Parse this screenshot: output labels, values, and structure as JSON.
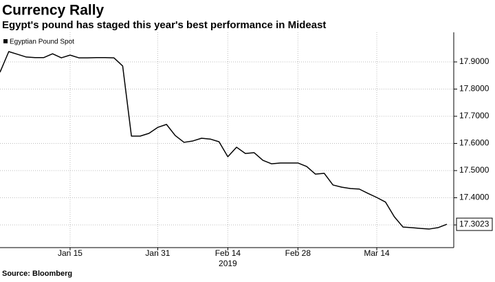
{
  "chart_data": {
    "type": "line",
    "title": "Currency Rally",
    "subtitle": "Egypt's pound has staged this year's best performance in Mideast",
    "source": "Source: Bloomberg",
    "x_axis_label": "2019",
    "categories": [
      null,
      null,
      null,
      null,
      null,
      null,
      null,
      null,
      "Jan 15",
      null,
      null,
      null,
      null,
      null,
      null,
      null,
      null,
      null,
      "Jan 31",
      null,
      null,
      null,
      null,
      null,
      null,
      null,
      "Feb 14",
      null,
      null,
      null,
      null,
      null,
      null,
      null,
      "Feb 28",
      null,
      null,
      null,
      null,
      null,
      null,
      null,
      null,
      "Mar 14",
      null,
      null,
      null,
      null,
      null,
      null,
      null,
      null
    ],
    "series": [
      {
        "name": "Egyptian Pound Spot",
        "color": "#000000",
        "values": [
          17.862,
          17.938,
          17.928,
          17.918,
          17.916,
          17.916,
          17.93,
          17.915,
          17.925,
          17.915,
          17.915,
          17.916,
          17.916,
          17.915,
          17.885,
          17.627,
          17.627,
          17.637,
          17.659,
          17.67,
          17.629,
          17.604,
          17.609,
          17.619,
          17.616,
          17.606,
          17.551,
          17.586,
          17.563,
          17.566,
          17.538,
          17.525,
          17.528,
          17.528,
          17.528,
          17.515,
          17.487,
          17.49,
          17.447,
          17.439,
          17.434,
          17.432,
          17.416,
          17.401,
          17.384,
          17.33,
          17.292,
          17.29,
          17.287,
          17.285,
          17.29,
          17.3023
        ]
      }
    ],
    "ylim": [
      17.2165,
      18.0089
    ],
    "yticks": [
      {
        "value": 17.3,
        "label": "17.3000"
      },
      {
        "value": 17.4,
        "label": "17.4000"
      },
      {
        "value": 17.5,
        "label": "17.5000"
      },
      {
        "value": 17.6,
        "label": "17.6000"
      },
      {
        "value": 17.7,
        "label": "17.7000"
      },
      {
        "value": 17.8,
        "label": "17.8000"
      },
      {
        "value": 17.9,
        "label": "17.9000"
      }
    ],
    "y_axis_side": "right",
    "grid": true,
    "legend": "top-left"
  }
}
